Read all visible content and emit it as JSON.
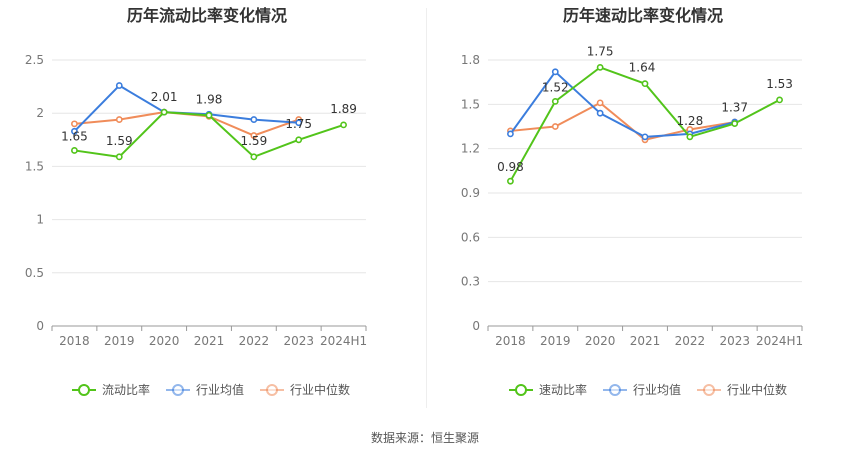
{
  "charts": [
    {
      "type": "line",
      "title": "历年流动比率变化情况",
      "categories": [
        "2018",
        "2019",
        "2020",
        "2021",
        "2022",
        "2023",
        "2024H1"
      ],
      "ylim": [
        0,
        2.5
      ],
      "yticks": [
        "0",
        "0.5",
        "1",
        "1.5",
        "2",
        "2.5"
      ],
      "ytick_values": [
        0,
        0.5,
        1,
        1.5,
        2,
        2.5
      ],
      "series": [
        {
          "name": "流动比率",
          "color": "#52c41a",
          "values": [
            1.65,
            1.59,
            2.01,
            1.98,
            1.59,
            1.75,
            1.89
          ],
          "labels": [
            "1.65",
            "1.59",
            "2.01",
            "1.98",
            "1.59",
            "1.75",
            "1.89"
          ]
        },
        {
          "name": "行业均值",
          "color": "#3b7ddd",
          "values": [
            1.83,
            2.26,
            2.01,
            1.99,
            1.94,
            1.91,
            null
          ]
        },
        {
          "name": "行业中位数",
          "color": "#f08c5a",
          "values": [
            1.9,
            1.94,
            2.01,
            1.97,
            1.79,
            1.94,
            null
          ]
        }
      ],
      "grid": true,
      "legend": "bottom"
    },
    {
      "type": "line",
      "title": "历年速动比率变化情况",
      "categories": [
        "2018",
        "2019",
        "2020",
        "2021",
        "2022",
        "2023",
        "2024H1"
      ],
      "ylim": [
        0,
        1.8
      ],
      "yticks": [
        "0",
        "0.3",
        "0.6",
        "0.9",
        "1.2",
        "1.5",
        "1.8"
      ],
      "ytick_values": [
        0,
        0.3,
        0.6,
        0.9,
        1.2,
        1.5,
        1.8
      ],
      "series": [
        {
          "name": "速动比率",
          "color": "#52c41a",
          "values": [
            0.98,
            1.52,
            1.75,
            1.64,
            1.28,
            1.37,
            1.53
          ],
          "labels": [
            "0.98",
            "1.52",
            "1.75",
            "1.64",
            "1.28",
            "1.37",
            "1.53"
          ]
        },
        {
          "name": "行业均值",
          "color": "#3b7ddd",
          "values": [
            1.3,
            1.72,
            1.44,
            1.28,
            1.3,
            1.38,
            null
          ]
        },
        {
          "name": "行业中位数",
          "color": "#f08c5a",
          "values": [
            1.32,
            1.35,
            1.51,
            1.26,
            1.33,
            1.38,
            null
          ]
        }
      ],
      "grid": true,
      "legend": "bottom"
    }
  ],
  "source": "数据来源：恒生聚源"
}
